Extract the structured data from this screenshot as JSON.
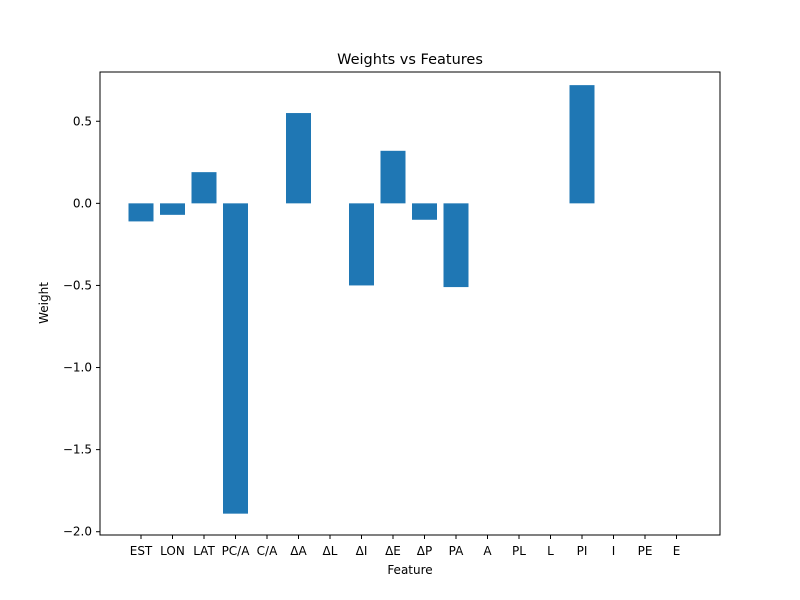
{
  "chart_data": {
    "type": "bar",
    "title": "Weights vs Features",
    "xlabel": "Feature",
    "ylabel": "Weight",
    "categories": [
      "EST",
      "LON",
      "LAT",
      "PC/A",
      "C/A",
      "ΔA",
      "ΔL",
      "ΔI",
      "ΔE",
      "ΔP",
      "PA",
      "A",
      "PL",
      "L",
      "PI",
      "I",
      "PE",
      "E"
    ],
    "values": [
      -0.11,
      -0.07,
      0.19,
      -1.89,
      0.0,
      0.55,
      0.0,
      -0.5,
      0.32,
      -0.1,
      -0.51,
      0.0,
      0.0,
      0.0,
      0.72,
      0.0,
      0.0,
      0.0
    ],
    "ylim": [
      -2.02,
      0.8
    ],
    "yticks": [
      0.5,
      0.0,
      -0.5,
      -1.0,
      -1.5,
      -2.0
    ],
    "ytick_labels": [
      "0.5",
      "0.0",
      "−0.5",
      "−1.0",
      "−1.5",
      "−2.0"
    ],
    "grid": false,
    "bar_color": "#1f77b4"
  }
}
